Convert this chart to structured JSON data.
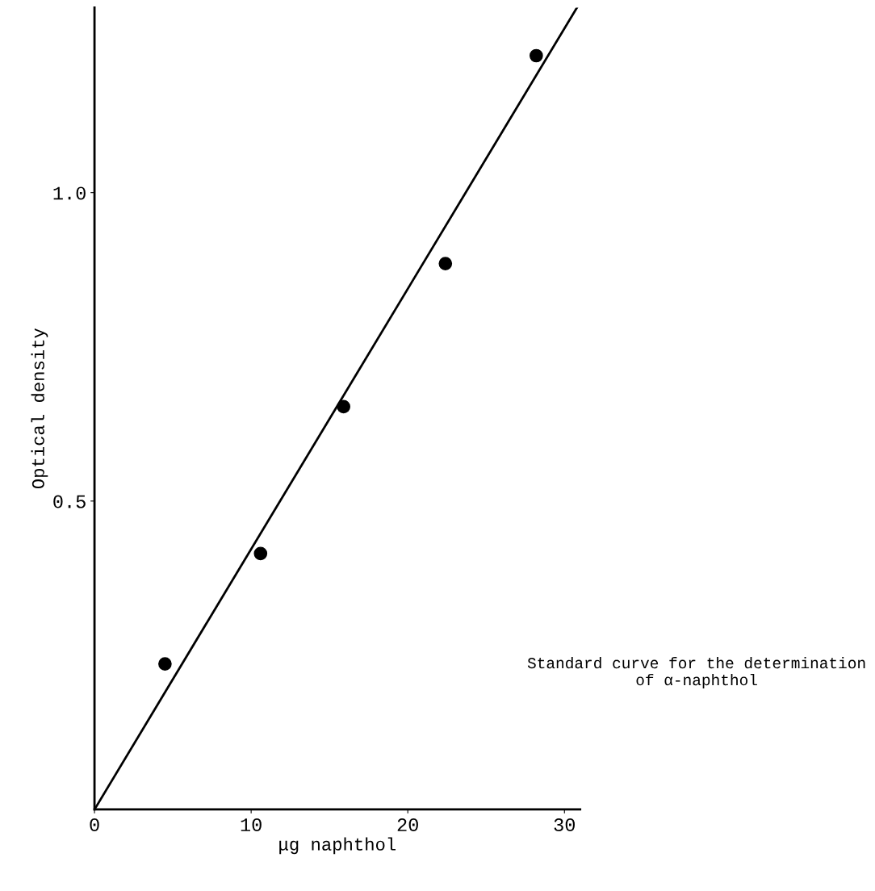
{
  "chart_data": {
    "type": "scatter",
    "xlabel": "μg naphthol",
    "ylabel": "Optical density",
    "series": [
      {
        "x": [
          4.5,
          10.6,
          15.9,
          22.4,
          28.2
        ],
        "values": [
          0.236,
          0.415,
          0.653,
          0.885,
          1.222
        ],
        "color": "#000000",
        "marker": "circle"
      },
      {
        "type": "line",
        "x": [
          0,
          30.8
        ],
        "values": [
          0,
          1.3
        ],
        "color": "#000000",
        "marker": "none"
      }
    ],
    "xlim": [
      0,
      31
    ],
    "ylim": [
      0,
      1.3
    ],
    "xticks": [
      0,
      10,
      20,
      30
    ],
    "yticks": [
      {
        "value": 0.5,
        "label": "0.5"
      },
      {
        "value": 1.0,
        "label": "1.0"
      }
    ],
    "annotations": [
      "Standard curve for the determination\nof α-naphthol"
    ]
  }
}
